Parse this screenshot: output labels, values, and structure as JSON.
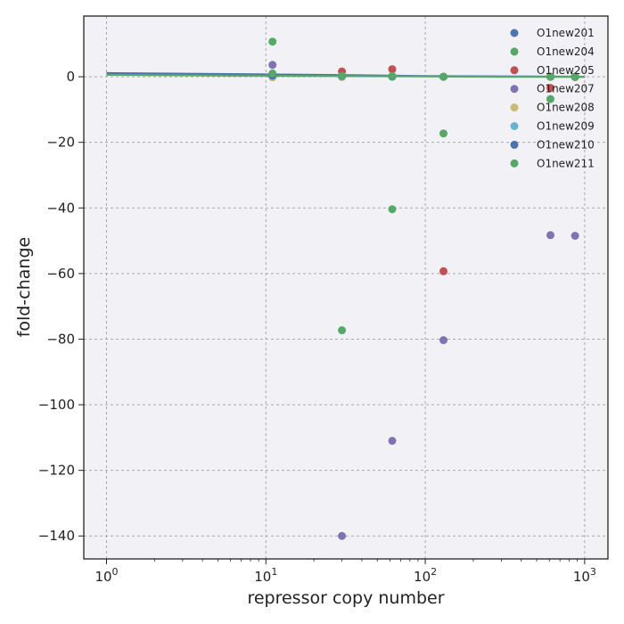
{
  "chart_data": {
    "type": "scatter",
    "title": "",
    "xlabel": "repressor copy number",
    "ylabel": "fold-change",
    "xscale": "log",
    "xlim": [
      0.72,
      1400
    ],
    "ylim": [
      -147,
      18.5
    ],
    "xticks": [
      1,
      10,
      100,
      1000
    ],
    "yticks": [
      0,
      -20,
      -40,
      -60,
      -80,
      -100,
      -120,
      -140
    ],
    "ytick_labels": [
      "0",
      "−20",
      "−40",
      "−60",
      "−80",
      "−100",
      "−120",
      "−140"
    ],
    "grid": true,
    "legend_position": "top-right",
    "series": [
      {
        "name": "O1new201",
        "color": "#4C72B0",
        "points": [
          [
            11,
            0.3
          ],
          [
            30,
            0.1
          ],
          [
            62,
            0.1
          ],
          [
            130,
            0.0
          ],
          [
            610,
            0.0
          ],
          [
            870,
            0.0
          ]
        ]
      },
      {
        "name": "O1new204",
        "color": "#55A868",
        "points": [
          [
            11,
            10.7
          ],
          [
            30,
            -77.3
          ],
          [
            62,
            -40.4
          ],
          [
            130,
            -17.3
          ],
          [
            610,
            -6.8
          ],
          [
            870,
            0.0
          ]
        ]
      },
      {
        "name": "O1new205",
        "color": "#C44E52",
        "points": [
          [
            11,
            0.5
          ],
          [
            30,
            1.6
          ],
          [
            62,
            2.3
          ],
          [
            130,
            -59.3
          ],
          [
            610,
            -3.4
          ],
          [
            870,
            -0.1
          ]
        ]
      },
      {
        "name": "O1new207",
        "color": "#8172B2",
        "points": [
          [
            11,
            3.6
          ],
          [
            30,
            -140.0
          ],
          [
            62,
            -111.0
          ],
          [
            130,
            -80.3
          ],
          [
            610,
            -48.3
          ],
          [
            870,
            -48.5
          ]
        ]
      },
      {
        "name": "O1new208",
        "color": "#CCB974",
        "points": [
          [
            11,
            -0.2
          ],
          [
            30,
            -0.1
          ],
          [
            62,
            0.0
          ],
          [
            130,
            0.0
          ],
          [
            610,
            0.0
          ],
          [
            870,
            0.0
          ]
        ]
      },
      {
        "name": "O1new209",
        "color": "#64B5CD",
        "points": [
          [
            11,
            0.2
          ],
          [
            30,
            0.1
          ],
          [
            62,
            0.0
          ],
          [
            130,
            0.0
          ],
          [
            610,
            0.0
          ],
          [
            870,
            0.0
          ]
        ]
      },
      {
        "name": "O1new210",
        "color": "#4C72B0",
        "points": [
          [
            11,
            0.4
          ],
          [
            30,
            0.2
          ],
          [
            62,
            0.1
          ],
          [
            130,
            0.0
          ],
          [
            610,
            0.0
          ],
          [
            870,
            0.0
          ]
        ]
      },
      {
        "name": "O1new211",
        "color": "#55A868",
        "points": [
          [
            11,
            1.0
          ],
          [
            30,
            0.3
          ],
          [
            62,
            0.2
          ],
          [
            130,
            0.0
          ],
          [
            610,
            0.0
          ],
          [
            870,
            0.0
          ]
        ]
      }
    ],
    "lines": [
      {
        "color": "#4C72B0",
        "points": [
          [
            1,
            1.1
          ],
          [
            10,
            0.7
          ],
          [
            30,
            0.5
          ],
          [
            100,
            0.2
          ],
          [
            300,
            0.1
          ],
          [
            1000,
            0.0
          ]
        ]
      },
      {
        "color": "#55A868",
        "points": [
          [
            1,
            0.6
          ],
          [
            10,
            0.3
          ],
          [
            30,
            0.2
          ],
          [
            100,
            0.1
          ],
          [
            300,
            0.0
          ],
          [
            1000,
            0.0
          ]
        ]
      }
    ]
  }
}
